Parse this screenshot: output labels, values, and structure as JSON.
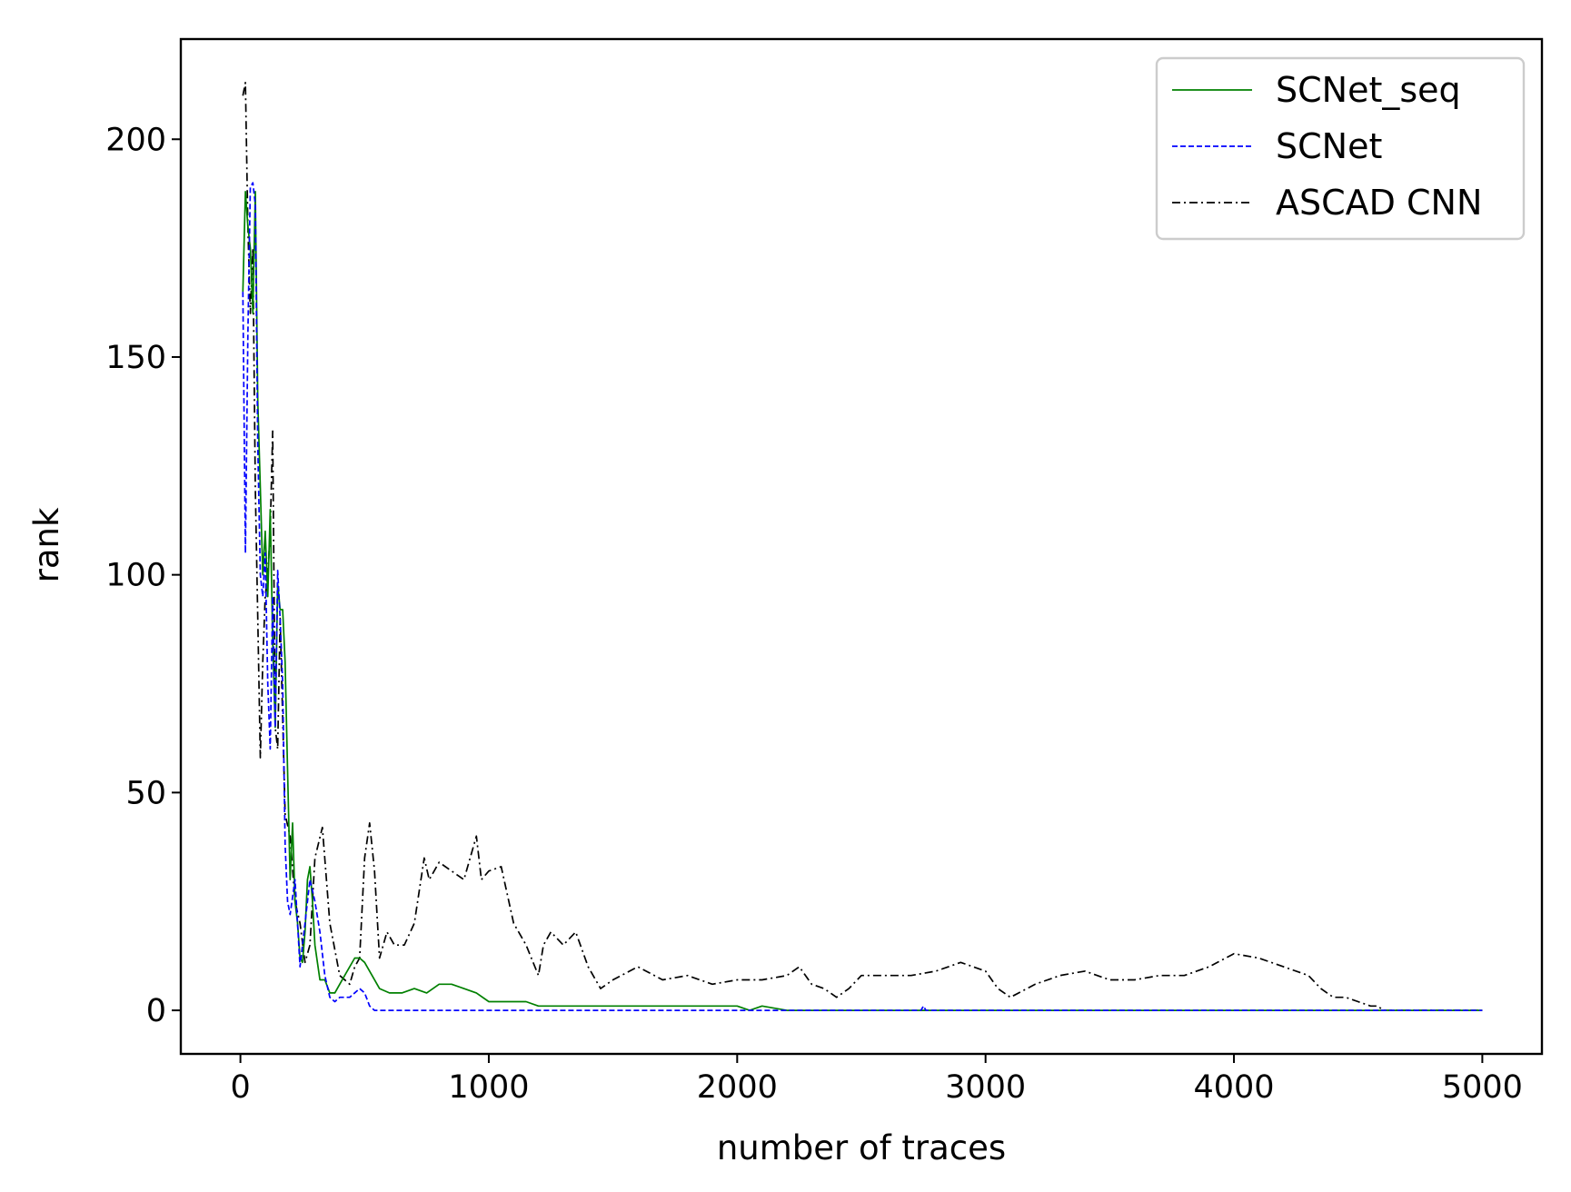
{
  "chart_data": {
    "type": "line",
    "xlabel": "number of traces",
    "ylabel": "rank",
    "xlim": [
      -240,
      5240
    ],
    "ylim": [
      -10,
      223
    ],
    "xticks": [
      0,
      1000,
      2000,
      3000,
      4000,
      5000
    ],
    "yticks": [
      0,
      50,
      100,
      150,
      200
    ],
    "grid": false,
    "legend_position": "top-right",
    "series": [
      {
        "name": "SCNet_seq",
        "color": "#008000",
        "style": "solid",
        "x": [
          10,
          20,
          30,
          40,
          50,
          60,
          70,
          80,
          90,
          100,
          110,
          120,
          130,
          140,
          150,
          160,
          170,
          180,
          190,
          200,
          210,
          220,
          230,
          240,
          250,
          260,
          270,
          280,
          290,
          300,
          320,
          340,
          360,
          380,
          400,
          430,
          460,
          480,
          500,
          530,
          560,
          600,
          650,
          700,
          750,
          800,
          850,
          900,
          950,
          1000,
          1050,
          1100,
          1150,
          1200,
          1300,
          1400,
          1600,
          1800,
          2000,
          2050,
          2100,
          2200,
          2500,
          3000,
          3500,
          4000,
          4500,
          5000
        ],
        "y": [
          165,
          188,
          180,
          175,
          160,
          188,
          140,
          120,
          100,
          110,
          95,
          115,
          85,
          65,
          98,
          92,
          92,
          80,
          55,
          30,
          43,
          25,
          20,
          12,
          11,
          18,
          30,
          33,
          25,
          15,
          7,
          7,
          4,
          4,
          6,
          9,
          12,
          12,
          11,
          8,
          5,
          4,
          4,
          5,
          4,
          6,
          6,
          5,
          4,
          2,
          2,
          2,
          2,
          1,
          1,
          1,
          1,
          1,
          1,
          0,
          1,
          0,
          0,
          0,
          0,
          0,
          0,
          0
        ]
      },
      {
        "name": "SCNet",
        "color": "#0000ff",
        "style": "dashed",
        "x": [
          10,
          20,
          30,
          40,
          50,
          60,
          70,
          80,
          90,
          100,
          110,
          120,
          130,
          140,
          150,
          160,
          170,
          180,
          190,
          200,
          220,
          240,
          260,
          280,
          300,
          320,
          340,
          360,
          380,
          400,
          440,
          480,
          500,
          520,
          540,
          600,
          800,
          1000,
          2000,
          2740,
          2750,
          2760,
          3000,
          4000,
          5000
        ],
        "y": [
          165,
          105,
          155,
          189,
          190,
          185,
          130,
          100,
          95,
          105,
          75,
          60,
          95,
          65,
          101,
          90,
          75,
          38,
          25,
          22,
          30,
          10,
          20,
          30,
          25,
          18,
          8,
          3,
          2,
          3,
          3,
          5,
          4,
          1,
          0,
          0,
          0,
          0,
          0,
          0,
          1,
          0,
          0,
          0,
          0
        ]
      },
      {
        "name": "ASCAD CNN",
        "color": "#000000",
        "style": "dashdot",
        "x": [
          10,
          20,
          30,
          40,
          50,
          60,
          70,
          80,
          90,
          100,
          110,
          120,
          130,
          140,
          150,
          160,
          180,
          200,
          220,
          240,
          260,
          280,
          300,
          330,
          360,
          400,
          440,
          460,
          480,
          500,
          520,
          540,
          560,
          590,
          620,
          660,
          700,
          740,
          760,
          800,
          850,
          900,
          950,
          970,
          1000,
          1050,
          1100,
          1150,
          1200,
          1220,
          1250,
          1300,
          1350,
          1400,
          1450,
          1500,
          1600,
          1700,
          1800,
          1900,
          2000,
          2100,
          2200,
          2250,
          2300,
          2350,
          2400,
          2450,
          2500,
          2600,
          2700,
          2800,
          2900,
          3000,
          3050,
          3100,
          3200,
          3300,
          3400,
          3500,
          3600,
          3700,
          3800,
          3900,
          4000,
          4100,
          4200,
          4300,
          4350,
          4400,
          4450,
          4500,
          4550,
          4580,
          4600,
          5000
        ],
        "y": [
          210,
          213,
          180,
          160,
          175,
          120,
          90,
          58,
          80,
          95,
          100,
          110,
          133,
          65,
          60,
          90,
          45,
          40,
          25,
          20,
          11,
          15,
          35,
          42,
          20,
          8,
          6,
          10,
          12,
          35,
          43,
          32,
          12,
          18,
          15,
          15,
          20,
          35,
          30,
          34,
          32,
          30,
          40,
          30,
          32,
          33,
          20,
          15,
          8,
          15,
          18,
          15,
          18,
          10,
          5,
          7,
          10,
          7,
          8,
          6,
          7,
          7,
          8,
          10,
          6,
          5,
          3,
          5,
          8,
          8,
          8,
          9,
          11,
          9,
          5,
          3,
          6,
          8,
          9,
          7,
          7,
          8,
          8,
          10,
          13,
          12,
          10,
          8,
          5,
          3,
          3,
          2,
          1,
          1,
          0,
          0
        ]
      }
    ]
  }
}
